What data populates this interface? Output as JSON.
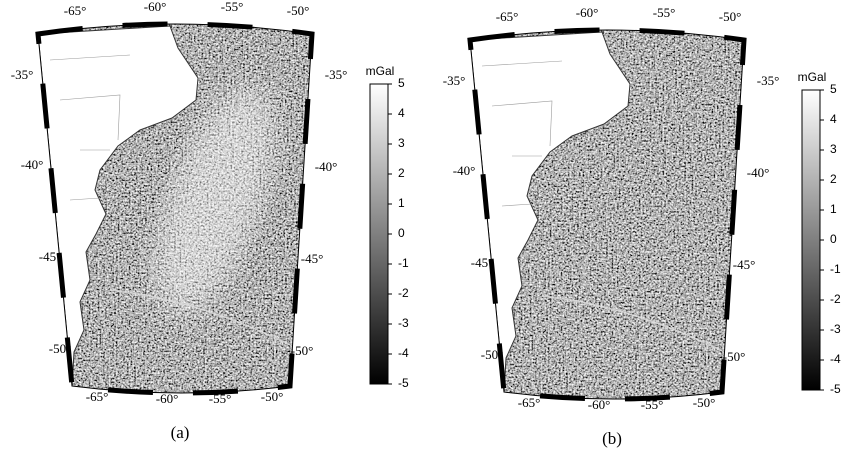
{
  "panels": [
    {
      "caption": "(a)",
      "top_labels": [
        "-65°",
        "-60°",
        "-55°",
        "-50°"
      ],
      "bottom_labels": [
        "-65°",
        "-60°",
        "-55°",
        "-50°"
      ],
      "left_labels": [
        "-35°",
        "-40°",
        "-45°",
        "-50°"
      ],
      "right_labels": [
        "-35°",
        "-40°",
        "-45°",
        "-50°"
      ],
      "colorbar": {
        "label": "mGal",
        "lim": [
          -5,
          5
        ],
        "ticks": [
          5,
          4,
          3,
          2,
          1,
          0,
          -1,
          -2,
          -3,
          -4,
          -5
        ]
      }
    },
    {
      "caption": "(b)",
      "top_labels": [
        "-65°",
        "-60°",
        "-55°",
        "-50°"
      ],
      "bottom_labels": [
        "-65°",
        "-60°",
        "-55°",
        "-50°"
      ],
      "left_labels": [
        "-35°",
        "-40°",
        "-45°",
        "-50°"
      ],
      "right_labels": [
        "-35°",
        "-40°",
        "-45°",
        "-50°"
      ],
      "colorbar": {
        "label": "mGal",
        "lim": [
          -5,
          5
        ],
        "ticks": [
          5,
          4,
          3,
          2,
          1,
          0,
          -1,
          -2,
          -3,
          -4,
          -5
        ]
      }
    }
  ]
}
